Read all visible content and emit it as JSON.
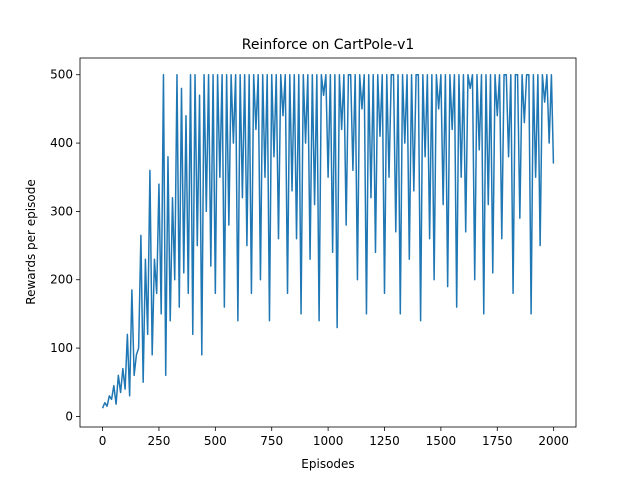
{
  "chart_data": {
    "type": "line",
    "title": "Reinforce on CartPole-v1",
    "x_label": "Episodes",
    "y_label": "Rewards per episode",
    "x": [
      0,
      10,
      20,
      30,
      40,
      50,
      60,
      70,
      80,
      90,
      100,
      110,
      120,
      130,
      140,
      150,
      160,
      170,
      180,
      190,
      200,
      210,
      220,
      230,
      240,
      250,
      260,
      270,
      280,
      290,
      300,
      310,
      320,
      330,
      340,
      350,
      360,
      370,
      380,
      390,
      400,
      410,
      420,
      430,
      440,
      450,
      460,
      470,
      480,
      490,
      500,
      510,
      520,
      530,
      540,
      550,
      560,
      570,
      580,
      590,
      600,
      610,
      620,
      630,
      640,
      650,
      660,
      670,
      680,
      690,
      700,
      710,
      720,
      730,
      740,
      750,
      760,
      770,
      780,
      790,
      800,
      810,
      820,
      830,
      840,
      850,
      860,
      870,
      880,
      890,
      900,
      910,
      920,
      930,
      940,
      950,
      960,
      970,
      980,
      990,
      1000,
      1010,
      1020,
      1030,
      1040,
      1050,
      1060,
      1070,
      1080,
      1090,
      1100,
      1110,
      1120,
      1130,
      1140,
      1150,
      1160,
      1170,
      1180,
      1190,
      1200,
      1210,
      1220,
      1230,
      1240,
      1250,
      1260,
      1270,
      1280,
      1290,
      1300,
      1310,
      1320,
      1330,
      1340,
      1350,
      1360,
      1370,
      1380,
      1390,
      1400,
      1410,
      1420,
      1430,
      1440,
      1450,
      1460,
      1470,
      1480,
      1490,
      1500,
      1510,
      1520,
      1530,
      1540,
      1550,
      1560,
      1570,
      1580,
      1590,
      1600,
      1610,
      1620,
      1630,
      1640,
      1650,
      1660,
      1670,
      1680,
      1690,
      1700,
      1710,
      1720,
      1730,
      1740,
      1750,
      1760,
      1770,
      1780,
      1790,
      1800,
      1810,
      1820,
      1830,
      1840,
      1850,
      1860,
      1870,
      1880,
      1890,
      1900,
      1910,
      1920,
      1930,
      1940,
      1950,
      1960,
      1970,
      1980,
      1990,
      1999
    ],
    "series": [
      {
        "name": "Rewards",
        "color": "#1f77b4",
        "values": [
          12,
          20,
          15,
          30,
          25,
          45,
          18,
          60,
          35,
          70,
          40,
          120,
          30,
          185,
          60,
          90,
          100,
          265,
          50,
          230,
          120,
          360,
          90,
          230,
          180,
          340,
          150,
          500,
          60,
          380,
          140,
          320,
          200,
          500,
          160,
          480,
          210,
          440,
          180,
          500,
          120,
          500,
          250,
          470,
          90,
          500,
          300,
          500,
          220,
          500,
          180,
          500,
          350,
          500,
          160,
          500,
          280,
          500,
          400,
          500,
          140,
          500,
          320,
          500,
          250,
          500,
          180,
          500,
          420,
          500,
          200,
          500,
          350,
          500,
          140,
          500,
          380,
          500,
          260,
          500,
          440,
          500,
          180,
          500,
          330,
          500,
          260,
          500,
          150,
          500,
          400,
          500,
          230,
          500,
          310,
          500,
          140,
          500,
          470,
          500,
          350,
          500,
          240,
          500,
          130,
          500,
          420,
          500,
          280,
          500,
          500,
          360,
          500,
          200,
          500,
          450,
          500,
          150,
          500,
          320,
          500,
          240,
          500,
          410,
          500,
          180,
          500,
          350,
          500,
          500,
          270,
          500,
          150,
          500,
          400,
          500,
          230,
          500,
          330,
          500,
          500,
          140,
          500,
          380,
          500,
          260,
          500,
          200,
          500,
          450,
          500,
          310,
          500,
          190,
          500,
          420,
          500,
          160,
          500,
          350,
          500,
          270,
          500,
          480,
          500,
          200,
          500,
          390,
          500,
          150,
          500,
          310,
          500,
          210,
          500,
          440,
          500,
          260,
          500,
          500,
          380,
          500,
          180,
          500,
          500,
          290,
          500,
          430,
          500,
          500,
          150,
          500,
          350,
          500,
          250,
          500,
          460,
          500,
          400,
          500,
          370
        ]
      }
    ],
    "xlim": [
      -100,
      2099
    ],
    "ylim": [
      -15.5,
      524.5
    ],
    "xticks": [
      0,
      250,
      500,
      750,
      1000,
      1250,
      1500,
      1750,
      2000
    ],
    "yticks": [
      0,
      100,
      200,
      300,
      400,
      500
    ]
  }
}
